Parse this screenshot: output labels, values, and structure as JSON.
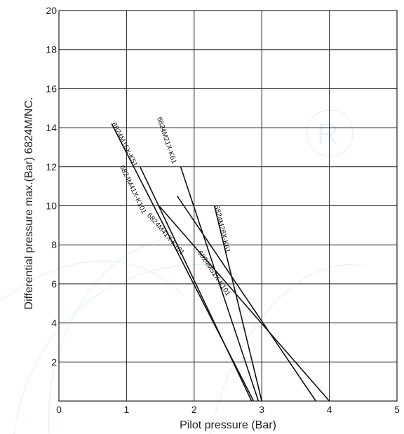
{
  "chart_data": {
    "type": "line",
    "title": "",
    "xlabel": "Pilot pressure (Bar)",
    "ylabel": "Differential pressure max.(Bar) 6824M/NC.",
    "xlim": [
      0,
      5
    ],
    "ylim": [
      0,
      20
    ],
    "x_ticks": [
      "0",
      "1",
      "2",
      "3",
      "4",
      "5"
    ],
    "y_ticks": [
      "2",
      "4",
      "6",
      "8",
      "10",
      "12",
      "14",
      "16",
      "18",
      "20"
    ],
    "grid": true,
    "legend": "none",
    "series": [
      {
        "name": "6824M16X-K51",
        "label_at": [
          0.78,
          14.2
        ],
        "x": [
          0.78,
          2.88
        ],
        "y": [
          14.2,
          0
        ]
      },
      {
        "name": "6824M41X-K101",
        "label_at": [
          0.9,
          12.0
        ],
        "x": [
          1.2,
          2.85
        ],
        "y": [
          12.0,
          0
        ]
      },
      {
        "name": "6824M21X-K61",
        "label_at": [
          1.45,
          14.5
        ],
        "x": [
          1.8,
          2.95
        ],
        "y": [
          12.0,
          0
        ]
      },
      {
        "name": "6824M26X-K61",
        "label_at": [
          2.3,
          10.0
        ],
        "x": [
          2.3,
          3.0
        ],
        "y": [
          10.0,
          0
        ]
      },
      {
        "name": "6824M41X-K101",
        "label_at": [
          1.3,
          9.5
        ],
        "x": [
          1.48,
          4.0
        ],
        "y": [
          10.0,
          0
        ]
      },
      {
        "name": "6824M51X-K101",
        "label_at": [
          2.05,
          7.6
        ],
        "x": [
          1.75,
          3.8
        ],
        "y": [
          10.5,
          0
        ]
      }
    ]
  }
}
